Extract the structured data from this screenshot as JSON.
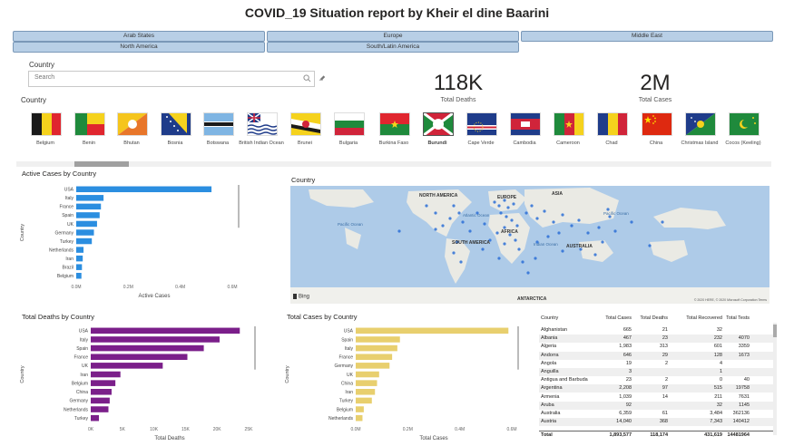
{
  "title": "COVID_19 Situation report  by Kheir el  dine Baarini",
  "regions": [
    "Arab States",
    "Europe",
    "Middle East",
    "North America",
    "South/Latin America"
  ],
  "country_filter": {
    "label": "Country",
    "placeholder": "Search"
  },
  "kpis": [
    {
      "value": "118K",
      "label": "Total Deaths"
    },
    {
      "value": "2M",
      "label": "Total Cases"
    }
  ],
  "flag_slicer": {
    "label": "Country",
    "items": [
      "Belgium",
      "Benin",
      "Bhutan",
      "Bosnia",
      "Botswana",
      "British Indian Ocean",
      "Brunei",
      "Bulgaria",
      "Burkina Faso",
      "Burundi",
      "Cape Verde",
      "Cambodia",
      "Cameroon",
      "Chad",
      "China",
      "Christmas Island",
      "Cocos (Keeling)"
    ]
  },
  "active_cases": {
    "title": "Active Cases by Country",
    "xlabel": "Active Cases",
    "ylabel": "Country",
    "ticks": [
      "0.0M",
      "0.2M",
      "0.4M",
      "0.6M"
    ],
    "color": "#2b8ee0",
    "chart_data": {
      "type": "bar",
      "categories": [
        "USA",
        "Italy",
        "France",
        "Spain",
        "UK",
        "Germany",
        "Turkey",
        "Netherlands",
        "Iran",
        "Brazil",
        "Belgium"
      ],
      "values": [
        0.52,
        0.105,
        0.095,
        0.09,
        0.08,
        0.068,
        0.06,
        0.028,
        0.025,
        0.022,
        0.02
      ],
      "xlim": [
        0,
        0.6
      ]
    }
  },
  "map": {
    "title": "Country",
    "continents": [
      "NORTH AMERICA",
      "EUROPE",
      "ASIA",
      "SOUTH AMERICA",
      "AFRICA",
      "AUSTRALIA",
      "ANTARCTICA"
    ],
    "oceans": [
      "Atlantic Ocean",
      "Pacific Ocean",
      "Indian Ocean",
      "Pacific Ocean"
    ],
    "logo": "Bing",
    "credit": "© 2020 HERE, © 2020 Microsoft Corporation  Terms"
  },
  "total_deaths": {
    "title": "Total Deaths by Country",
    "xlabel": "Total Deaths",
    "ylabel": "Country",
    "ticks": [
      "0K",
      "5K",
      "10K",
      "15K",
      "20K",
      "25K"
    ],
    "color": "#7b1f8a",
    "chart_data": {
      "type": "bar",
      "categories": [
        "USA",
        "Italy",
        "Spain",
        "France",
        "UK",
        "Iran",
        "Belgium",
        "China",
        "Germany",
        "Netherlands",
        "Turkey"
      ],
      "values": [
        23600,
        20400,
        17900,
        15300,
        11400,
        4700,
        3900,
        3300,
        3000,
        2800,
        1300
      ],
      "xlim": [
        0,
        25000
      ]
    }
  },
  "total_cases": {
    "title": "Total Cases by Country",
    "xlabel": "Total Cases",
    "ylabel": "Country",
    "ticks": [
      "0.0M",
      "0.2M",
      "0.4M",
      "0.6M"
    ],
    "color": "#e8cf6e",
    "chart_data": {
      "type": "bar",
      "categories": [
        "USA",
        "Spain",
        "Italy",
        "France",
        "Germany",
        "UK",
        "China",
        "Iran",
        "Turkey",
        "Belgium",
        "Netherlands"
      ],
      "values": [
        0.587,
        0.17,
        0.16,
        0.14,
        0.13,
        0.09,
        0.082,
        0.074,
        0.062,
        0.031,
        0.026
      ],
      "xlim": [
        0,
        0.6
      ]
    }
  },
  "table": {
    "headers": [
      "Country",
      "Total Cases",
      "Total Deaths",
      "Total Recovered",
      "Total Tests"
    ],
    "rows": [
      [
        "Afghanistan",
        "665",
        "21",
        "32",
        ""
      ],
      [
        "Albania",
        "467",
        "23",
        "232",
        "4070"
      ],
      [
        "Algeria",
        "1,983",
        "313",
        "601",
        "3359"
      ],
      [
        "Andorra",
        "646",
        "29",
        "128",
        "1673"
      ],
      [
        "Angola",
        "19",
        "2",
        "4",
        ""
      ],
      [
        "Anguilla",
        "3",
        "",
        "1",
        ""
      ],
      [
        "Antigua and Barbuda",
        "23",
        "2",
        "0",
        "40"
      ],
      [
        "Argentina",
        "2,208",
        "97",
        "515",
        "19758"
      ],
      [
        "Armenia",
        "1,039",
        "14",
        "211",
        "7631"
      ],
      [
        "Aruba",
        "92",
        "",
        "32",
        "1145"
      ],
      [
        "Australia",
        "6,359",
        "61",
        "3,484",
        "362136"
      ],
      [
        "Austria",
        "14,040",
        "368",
        "7,343",
        "140412"
      ]
    ],
    "total": [
      "Total",
      "1,893,577",
      "118,174",
      "431,619",
      "14481964"
    ]
  }
}
